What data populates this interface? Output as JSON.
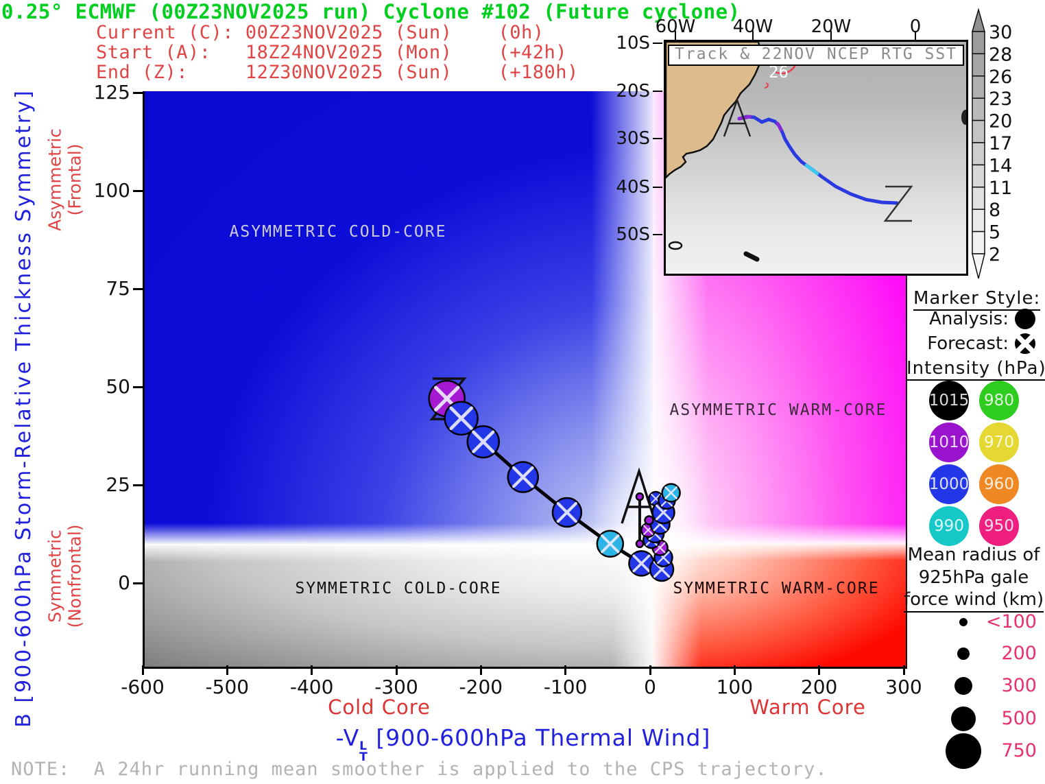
{
  "title": "0.25° ECMWF (00Z23NOV2025 run) Cyclone #102 (Future cyclone)",
  "header_lines": [
    "Current (C): 00Z23NOV2025 (Sun)    (0h)",
    "Start (A):   18Z24NOV2025 (Mon)    (+42h)",
    "End (Z):     12Z30NOV2025 (Sun)    (+180h)"
  ],
  "plot": {
    "quadrant_labels": {
      "tl": "ASYMMETRIC COLD-CORE",
      "tr": "ASYMMETRIC WARM-CORE",
      "bl": "SYMMETRIC COLD-CORE",
      "br": "SYMMETRIC WARM-CORE"
    },
    "x_ticks": [
      "-600",
      "-500",
      "-400",
      "-300",
      "-200",
      "-100",
      "0",
      "100",
      "200",
      "300"
    ],
    "y_ticks": [
      "125",
      "100",
      "75",
      "50",
      "25",
      "0"
    ],
    "cold_core": "Cold Core",
    "warm_core": "Warm Core",
    "xlabel_prefix": "-V",
    "xlabel_sup": "L",
    "xlabel_sub": "T",
    "xlabel_rest": " [900-600hPa Thermal Wind]",
    "ylabel": "B [900-600hPa Storm-Relative Thickness Symmetry]",
    "left_label_top_1": "Asymmetric",
    "left_label_top_2": "(Frontal)",
    "left_label_bottom_1": "Symmetric",
    "left_label_bottom_2": "(Nonfrontal)",
    "start_letter": "A",
    "end_letter": "Z"
  },
  "inset": {
    "title": "Track & 22NOV NCEP RTG SST",
    "lon_labels": [
      "60W",
      "40W",
      "20W",
      "0"
    ],
    "lat_labels": [
      "10S",
      "20S",
      "30S",
      "40S",
      "50S"
    ],
    "sst_contour_label": "26",
    "start_letter": "A",
    "end_letter": "Z",
    "colorbar_ticks": [
      "30",
      "28",
      "26",
      "23",
      "20",
      "17",
      "14",
      "11",
      "8",
      "5",
      "2"
    ]
  },
  "legend": {
    "marker_style_header": "Marker Style:",
    "analysis_label": "Analysis:",
    "forecast_label": "Forecast:",
    "intensity_header": "Intensity (hPa):",
    "intensity_items": [
      {
        "label": "1015",
        "color": "#000000"
      },
      {
        "label": "980",
        "color": "#2ecc1f"
      },
      {
        "label": "1010",
        "color": "#9912cc"
      },
      {
        "label": "970",
        "color": "#e6d832"
      },
      {
        "label": "1000",
        "color": "#2337e8"
      },
      {
        "label": "960",
        "color": "#ef8822"
      },
      {
        "label": "990",
        "color": "#16c8c8"
      },
      {
        "label": "950",
        "color": "#ee1f7e"
      }
    ],
    "gale_header_1": "Mean radius of",
    "gale_header_2": "925hPa gale",
    "gale_header_3": "force wind (km):",
    "gale_items": [
      {
        "label": "<100",
        "r": 6
      },
      {
        "label": "200",
        "r": 9
      },
      {
        "label": "300",
        "r": 13
      },
      {
        "label": "500",
        "r": 18
      },
      {
        "label": "750",
        "r": 26
      }
    ]
  },
  "note": "NOTE:  A 24hr running mean smoother is applied to the CPS trajectory.",
  "chart_data": {
    "type": "scatter",
    "title": "0.25° ECMWF (00Z23NOV2025 run) Cyclone #102 (Future cyclone)",
    "xlabel": "-VT^L [900-600hPa Thermal Wind]",
    "ylabel": "B [900-600hPa Storm-Relative Thickness Symmetry]",
    "xlim": [
      -600,
      300
    ],
    "ylim": [
      -21,
      125
    ],
    "x_ticks": [
      -600,
      -500,
      -400,
      -300,
      -200,
      -100,
      0,
      100,
      200,
      300
    ],
    "y_ticks": [
      125,
      100,
      75,
      50,
      25,
      0
    ],
    "thresholds": {
      "vt": 0,
      "b": 10
    },
    "quadrants": [
      "ASYMMETRIC COLD-CORE",
      "ASYMMETRIC WARM-CORE",
      "SYMMETRIC COLD-CORE",
      "SYMMETRIC WARM-CORE"
    ],
    "trajectory_forecast": [
      {
        "vt": 24,
        "b": 23,
        "hpa": 990,
        "color": "#2db4e6",
        "r": 13
      },
      {
        "vt": 19,
        "b": 21,
        "hpa": 1000,
        "color": "#2337e8",
        "r": 12
      },
      {
        "vt": 15,
        "b": 18,
        "hpa": 1000,
        "color": "#2337e8",
        "r": 16
      },
      {
        "vt": 11,
        "b": 15,
        "hpa": 1000,
        "color": "#2337e8",
        "r": 14
      },
      {
        "vt": -3,
        "b": 13.5,
        "hpa": 1010,
        "color": "#a01ed6",
        "r": 10
      },
      {
        "vt": 5,
        "b": 12.6,
        "hpa": 1000,
        "color": "#2337e8",
        "r": 13
      },
      {
        "vt": 1,
        "b": 11,
        "hpa": 1000,
        "color": "#2337e8",
        "r": 12
      },
      {
        "vt": 11,
        "b": 9,
        "hpa": 1010,
        "color": "#a01ed6",
        "r": 11
      },
      {
        "vt": 15,
        "b": 6.5,
        "hpa": 1000,
        "color": "#2337e8",
        "r": 13
      },
      {
        "vt": 13,
        "b": 3.5,
        "hpa": 1000,
        "color": "#2337e8",
        "r": 17
      },
      {
        "vt": -11,
        "b": 5,
        "hpa": 1000,
        "color": "#2337e8",
        "r": 18
      },
      {
        "vt": -48,
        "b": 10,
        "hpa": 990,
        "color": "#2db4e6",
        "r": 19
      },
      {
        "vt": -99,
        "b": 18,
        "hpa": 1000,
        "color": "#2337e8",
        "r": 21
      },
      {
        "vt": -151,
        "b": 27,
        "hpa": 1000,
        "color": "#2337e8",
        "r": 22
      },
      {
        "vt": -198,
        "b": 36,
        "hpa": 1000,
        "color": "#2337e8",
        "r": 23
      },
      {
        "vt": -224,
        "b": 42,
        "hpa": 1000,
        "color": "#2337e8",
        "r": 24
      },
      {
        "vt": -241,
        "b": 47,
        "hpa": 1010,
        "color": "#a519d2",
        "r": 26
      }
    ],
    "trajectory_forecast_extra": [
      {
        "vt": 6,
        "b": 21.5,
        "hpa": 1000,
        "color": "#2337e8",
        "r": 10,
        "connect_to_index": 2
      }
    ],
    "trajectory_analysis": [
      {
        "vt": -13,
        "b": 22,
        "hpa": 1010,
        "color": "#a01ed6",
        "r": 5
      },
      {
        "vt": -2,
        "b": 16,
        "hpa": 1010,
        "color": "#a01ed6",
        "r": 6
      },
      {
        "vt": -13,
        "b": 10,
        "hpa": 1010,
        "color": "#a01ed6",
        "r": 5
      }
    ],
    "inset_track": {
      "sst_source": "22NOV NCEP RTG SST",
      "sst_colorbar_c": [
        30,
        28,
        26,
        23,
        20,
        17,
        14,
        11,
        8,
        5,
        2
      ],
      "sst_contour_shown_c": 26,
      "start_approx_lonlat": [
        -45,
        -25
      ],
      "end_approx_lonlat": [
        -12,
        -41
      ]
    }
  }
}
